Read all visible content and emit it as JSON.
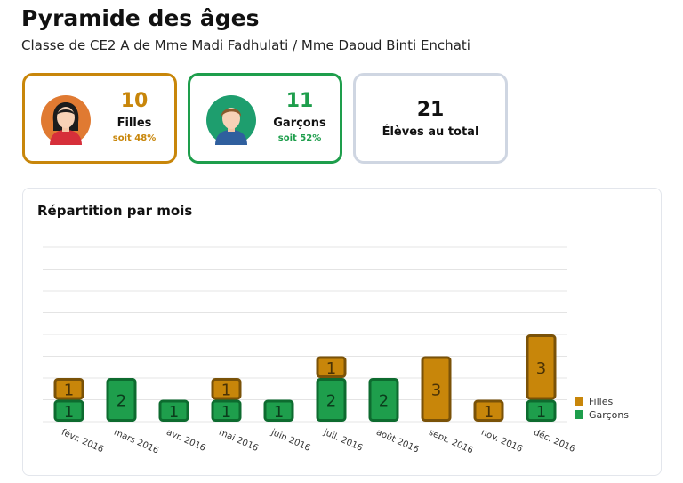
{
  "header": {
    "title": "Pyramide des âges",
    "subtitle": "Classe de CE2 A de Mme Madi Fadhulati / Mme Daoud Binti Enchati"
  },
  "stats": {
    "girls": {
      "count": "10",
      "label": "Filles",
      "percent": "soit 48%",
      "icon": "girl-avatar-icon",
      "color": "#c8860a"
    },
    "boys": {
      "count": "11",
      "label": "Garçons",
      "percent": "soit 52%",
      "icon": "boy-avatar-icon",
      "color": "#1e9e4c"
    },
    "total": {
      "count": "21",
      "label": "Élèves au total"
    }
  },
  "chart_data": {
    "type": "bar",
    "stacked": true,
    "title": "Répartition par mois",
    "categories": [
      "févr. 2016",
      "mars 2016",
      "avr. 2016",
      "mai 2016",
      "juin 2016",
      "juil. 2016",
      "août 2016",
      "sept. 2016",
      "nov. 2016",
      "déc. 2016"
    ],
    "series": [
      {
        "name": "Garçons",
        "values": [
          1,
          2,
          1,
          1,
          1,
          2,
          2,
          0,
          0,
          1
        ],
        "color": "#1e9e4c",
        "border": "#0d6b2f",
        "label_color": "#0b3d1c"
      },
      {
        "name": "Filles",
        "values": [
          1,
          0,
          0,
          1,
          0,
          1,
          0,
          3,
          1,
          3
        ],
        "color": "#c8860a",
        "border": "#7a5208",
        "label_color": "#4a3206"
      }
    ],
    "ylim": [
      0,
      8
    ],
    "grid": true,
    "legend": "right"
  }
}
